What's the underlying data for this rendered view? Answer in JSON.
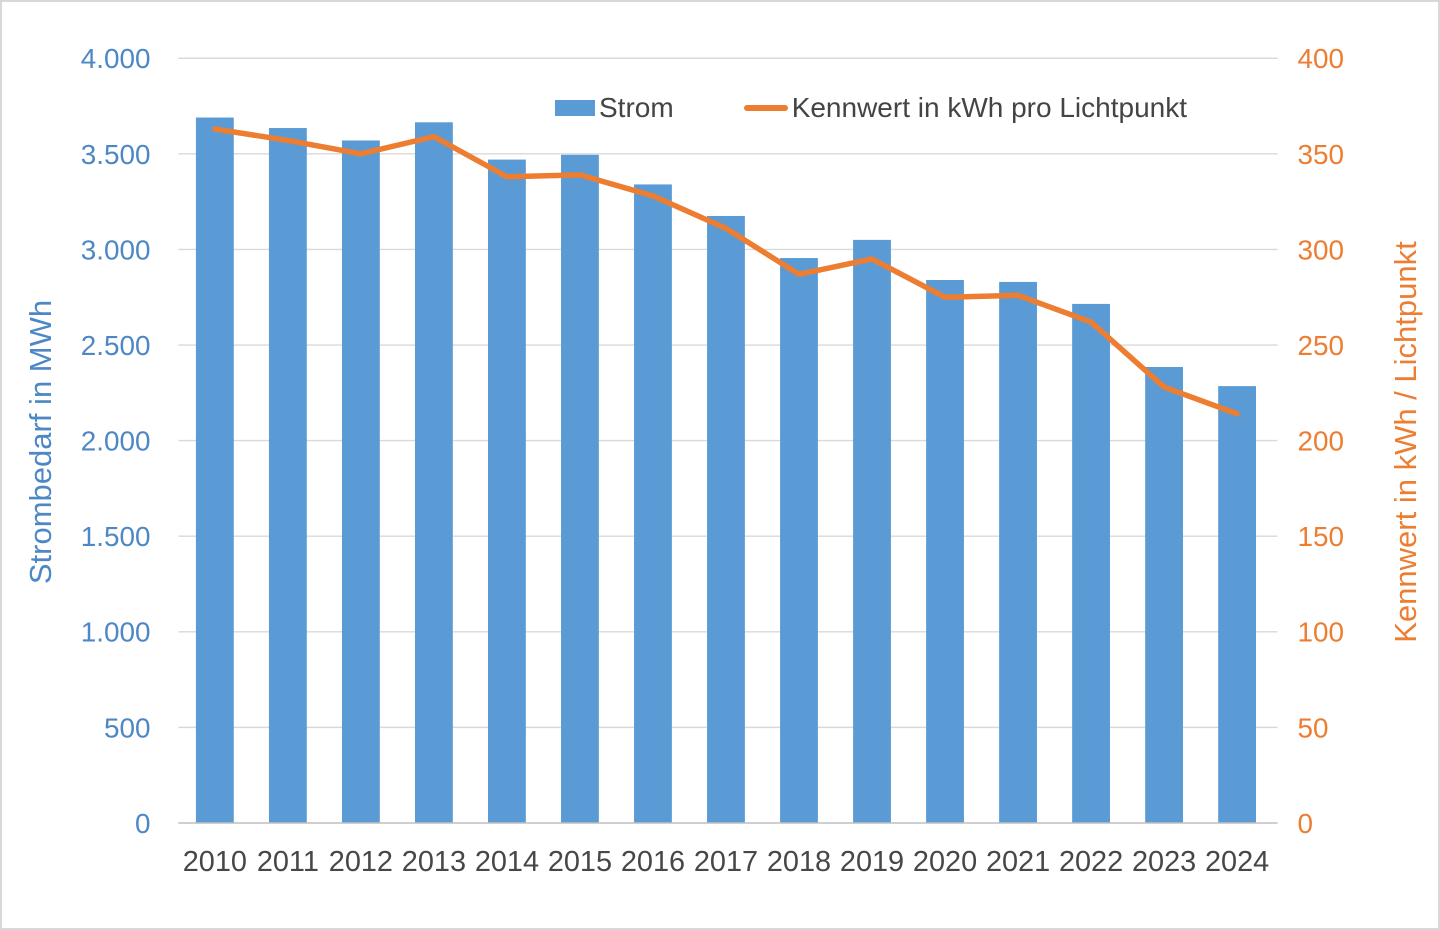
{
  "chart_data": {
    "type": "combo",
    "categories": [
      "2010",
      "2011",
      "2012",
      "2013",
      "2014",
      "2015",
      "2016",
      "2017",
      "2018",
      "2019",
      "2020",
      "2021",
      "2022",
      "2023",
      "2024"
    ],
    "series": [
      {
        "name": "Strom",
        "type": "bar",
        "axis": "left",
        "color": "#5B9BD5",
        "values": [
          3690,
          3635,
          3570,
          3665,
          3470,
          3495,
          3340,
          3175,
          2955,
          3050,
          2840,
          2830,
          2715,
          2385,
          2285
        ]
      },
      {
        "name": "Kennwert in kWh pro Lichtpunkt",
        "type": "line",
        "axis": "right",
        "color": "#ED7D31",
        "values": [
          363,
          357,
          350,
          359,
          338,
          339,
          328,
          311,
          287,
          295,
          275,
          276,
          262,
          228,
          214
        ]
      }
    ],
    "left_axis": {
      "title": "Strombedarf in MWh",
      "min": 0,
      "max": 4000,
      "step": 500,
      "tick_labels": [
        "0",
        "500",
        "1.000",
        "1.500",
        "2.000",
        "2.500",
        "3.000",
        "3.500",
        "4.000"
      ],
      "color": "#4E87C5"
    },
    "right_axis": {
      "title": "Kennwert in kWh / Lichtpunkt",
      "min": 0,
      "max": 400,
      "step": 50,
      "tick_labels": [
        "0",
        "50",
        "100",
        "150",
        "200",
        "250",
        "300",
        "350",
        "400"
      ],
      "color": "#ED7D31"
    },
    "x_axis": {
      "label_color": "#474747"
    },
    "grid": {
      "show": true,
      "color": "#D9D9D9",
      "baseline_color": "#BFBFBF"
    },
    "legend": {
      "position": "top"
    }
  }
}
